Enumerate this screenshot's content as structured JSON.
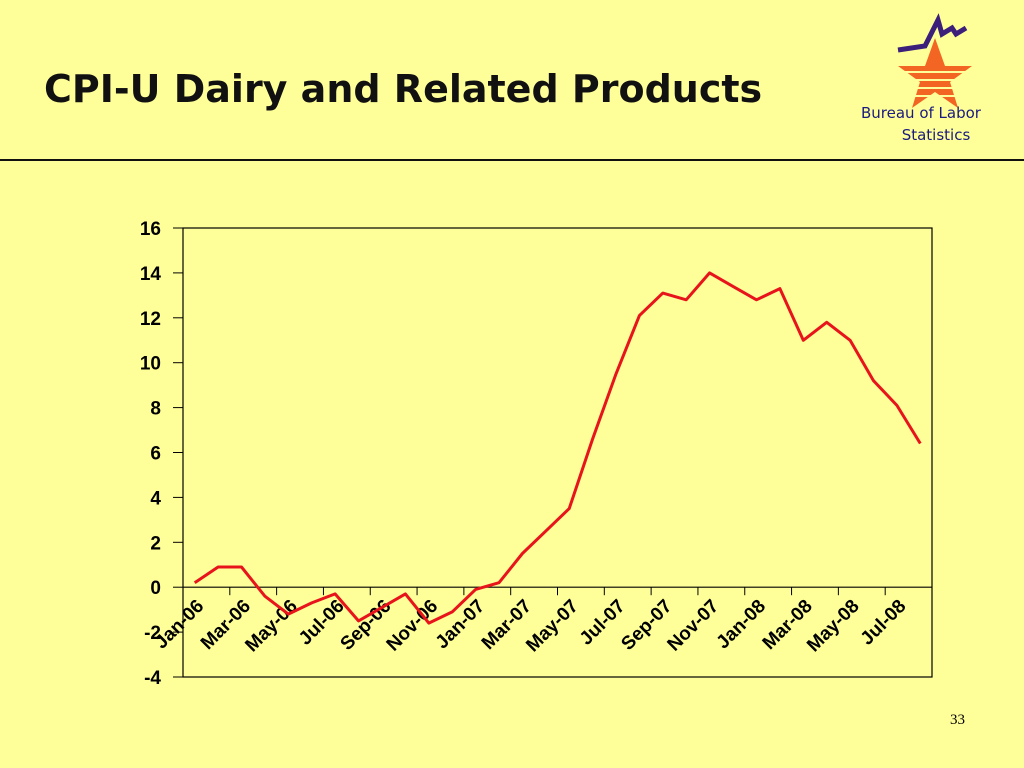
{
  "slide": {
    "title": "CPI-U Dairy and Related Products",
    "logo_lines": [
      "Bureau of Labor",
      "Statistics"
    ],
    "page_number": "33"
  },
  "chart_data": {
    "type": "line",
    "categories": [
      "Jan-06",
      null,
      "Mar-06",
      null,
      "May-06",
      null,
      "Jul-06",
      null,
      "Sep-06",
      null,
      "Nov-06",
      null,
      "Jan-07",
      null,
      "Mar-07",
      null,
      "May-07",
      null,
      "Jul-07",
      null,
      "Sep-07",
      null,
      "Nov-07",
      null,
      "Jan-08",
      null,
      "Mar-08",
      null,
      "May-08",
      null,
      "Jul-08",
      null
    ],
    "series": [
      {
        "name": "CPI-U Dairy and Related Products",
        "color": "#e8141b",
        "values": [
          0.2,
          0.9,
          0.9,
          -0.4,
          -1.2,
          -0.7,
          -0.3,
          -1.5,
          -0.9,
          -0.3,
          -1.6,
          -1.1,
          -0.1,
          0.2,
          1.5,
          2.5,
          3.5,
          6.6,
          9.5,
          12.1,
          13.1,
          12.8,
          14.0,
          13.4,
          12.8,
          13.3,
          11.0,
          11.8,
          11.0,
          9.2,
          8.1,
          6.4
        ]
      }
    ],
    "ylim": [
      -4,
      16
    ],
    "yticks": [
      -4,
      -2,
      0,
      2,
      4,
      6,
      8,
      10,
      12,
      14,
      16
    ],
    "grid": false
  }
}
